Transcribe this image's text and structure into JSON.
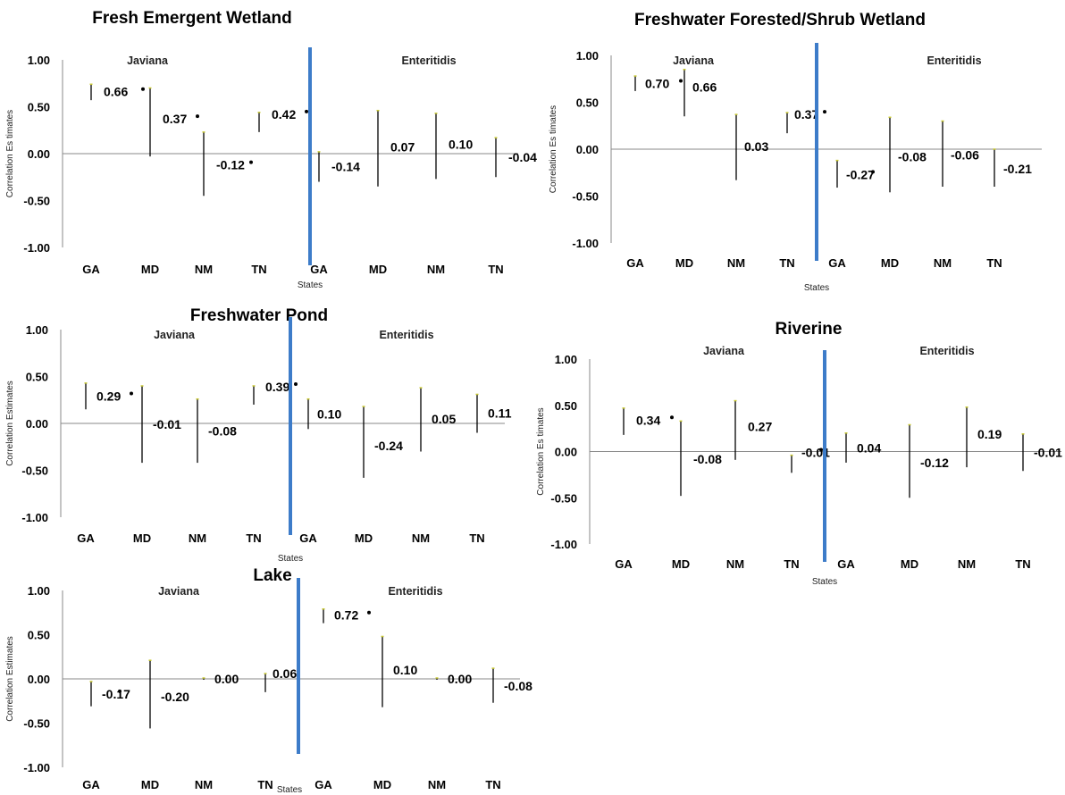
{
  "colors": {
    "divider": "#3d7cc9",
    "whisker": "#000000",
    "cap": "#c8c832",
    "axis": "#888888"
  },
  "chart_data": [
    {
      "type": "errorbar",
      "title": "Fresh Emergent Wetland",
      "ylabel": "Correlation Es timates",
      "xlabel": "States",
      "ylim": [
        -1,
        1
      ],
      "yticks": [
        "1.00",
        "0.50",
        "0.00",
        "-0.50",
        "-1.00"
      ],
      "groups": [
        "Javiana",
        "Enteritidis"
      ],
      "categories": [
        "GA",
        "MD",
        "NM",
        "TN",
        "GA",
        "MD",
        "NM",
        "TN"
      ],
      "series": [
        {
          "values": [
            0.66,
            0.37,
            -0.12,
            0.42,
            -0.14,
            0.07,
            0.1,
            -0.04
          ],
          "labels": [
            "0.66",
            "0.37",
            "-0.12",
            "0.42",
            "-0.14",
            "0.07",
            "0.10",
            "-0.04"
          ],
          "lower": [
            0.57,
            -0.03,
            -0.45,
            0.23,
            -0.3,
            -0.35,
            -0.27,
            -0.25
          ],
          "upper": [
            0.74,
            0.7,
            0.23,
            0.44,
            0.02,
            0.46,
            0.43,
            0.17
          ],
          "significant": [
            true,
            true,
            true,
            true,
            false,
            false,
            false,
            false
          ]
        }
      ]
    },
    {
      "type": "errorbar",
      "title": "Freshwater Forested/Shrub Wetland",
      "ylabel": "Correlation Es timates",
      "xlabel": "States",
      "ylim": [
        -1,
        1
      ],
      "yticks": [
        "1.00",
        "0.50",
        "0.00",
        "-0.50",
        "-1.00"
      ],
      "groups": [
        "Javiana",
        "Enteritidis"
      ],
      "categories": [
        "GA",
        "MD",
        "NM",
        "TN",
        "GA",
        "MD",
        "NM",
        "TN"
      ],
      "series": [
        {
          "values": [
            0.7,
            0.66,
            0.03,
            0.37,
            -0.27,
            -0.08,
            -0.06,
            -0.21
          ],
          "labels": [
            "0.70",
            "0.66",
            "0.03",
            "0.37",
            "-0.27",
            "-0.08",
            "-0.06",
            "-0.21"
          ],
          "lower": [
            0.62,
            0.35,
            -0.33,
            0.17,
            -0.41,
            -0.46,
            -0.4,
            -0.4
          ],
          "upper": [
            0.78,
            0.85,
            0.37,
            0.39,
            -0.12,
            0.34,
            0.3,
            0.0
          ],
          "significant": [
            true,
            false,
            false,
            true,
            true,
            false,
            false,
            false
          ]
        }
      ]
    },
    {
      "type": "errorbar",
      "title": "Freshwater Pond",
      "ylabel": "Correlation Estimates",
      "xlabel": "States",
      "ylim": [
        -1,
        1
      ],
      "yticks": [
        "1.00",
        "0.50",
        "0.00",
        "-0.50",
        "-1.00"
      ],
      "groups": [
        "Javiana",
        "Enteritidis"
      ],
      "categories": [
        "GA",
        "MD",
        "NM",
        "TN",
        "GA",
        "MD",
        "NM",
        "TN"
      ],
      "series": [
        {
          "values": [
            0.29,
            -0.01,
            -0.08,
            0.39,
            0.1,
            -0.24,
            0.05,
            0.11
          ],
          "labels": [
            "0.29",
            "-0.01",
            "-0.08",
            "0.39",
            "0.10",
            "-0.24",
            "0.05",
            "0.11"
          ],
          "lower": [
            0.15,
            -0.42,
            -0.42,
            0.2,
            -0.06,
            -0.58,
            -0.3,
            -0.1
          ],
          "upper": [
            0.43,
            0.4,
            0.26,
            0.4,
            0.26,
            0.18,
            0.38,
            0.31
          ],
          "significant": [
            true,
            false,
            false,
            true,
            false,
            false,
            false,
            false
          ]
        }
      ]
    },
    {
      "type": "errorbar",
      "title": "Riverine",
      "ylabel": "Correlation Es timates",
      "xlabel": "States",
      "ylim": [
        -1,
        1
      ],
      "yticks": [
        "1.00",
        "0.50",
        "0.00",
        "-0.50",
        "-1.00"
      ],
      "groups": [
        "Javiana",
        "Enteritidis"
      ],
      "categories": [
        "GA",
        "MD",
        "NM",
        "TN",
        "GA",
        "MD",
        "NM",
        "TN"
      ],
      "series": [
        {
          "values": [
            0.34,
            -0.08,
            0.27,
            -0.01,
            0.04,
            -0.12,
            0.19,
            -0.01
          ],
          "labels": [
            "0.34",
            "-0.08",
            "0.27",
            "-0.01",
            "0.04",
            "-0.12",
            "0.19",
            "-0.01"
          ],
          "lower": [
            0.18,
            -0.48,
            -0.09,
            -0.23,
            -0.12,
            -0.5,
            -0.17,
            -0.21
          ],
          "upper": [
            0.47,
            0.33,
            0.55,
            -0.04,
            0.2,
            0.29,
            0.48,
            0.19
          ],
          "significant": [
            true,
            false,
            false,
            true,
            false,
            false,
            false,
            false
          ]
        }
      ]
    },
    {
      "type": "errorbar",
      "title": "Lake",
      "ylabel": "Correlation Estimates",
      "xlabel": "States",
      "ylim": [
        -1,
        1
      ],
      "yticks": [
        "1.00",
        "0.50",
        "0.00",
        "-0.50",
        "-1.00"
      ],
      "groups": [
        "Javiana",
        "Enteritidis"
      ],
      "categories": [
        "GA",
        "MD",
        "NM",
        "TN",
        "GA",
        "MD",
        "NM",
        "TN"
      ],
      "series": [
        {
          "values": [
            -0.17,
            -0.2,
            0.0,
            0.06,
            0.72,
            0.1,
            0.0,
            -0.08
          ],
          "labels": [
            "-0.17",
            "-0.20",
            "0.00",
            "0.06",
            "0.72",
            "0.10",
            "0.00",
            "-0.08"
          ],
          "lower": [
            -0.31,
            -0.56,
            -0.01,
            -0.15,
            0.63,
            -0.32,
            -0.01,
            -0.27
          ],
          "upper": [
            -0.03,
            0.21,
            0.01,
            0.06,
            0.79,
            0.48,
            0.01,
            0.12
          ],
          "significant": [
            true,
            false,
            false,
            false,
            true,
            false,
            false,
            false
          ]
        }
      ]
    }
  ]
}
